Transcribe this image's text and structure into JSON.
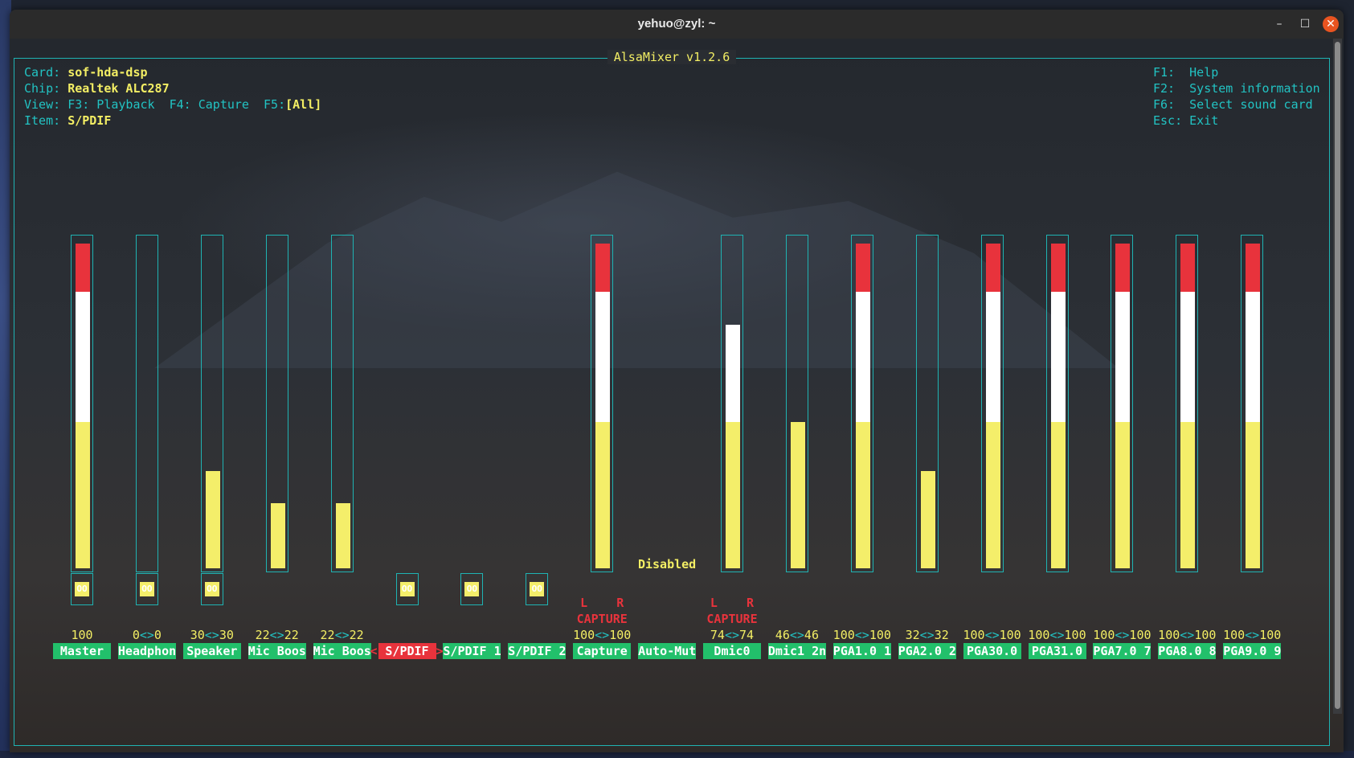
{
  "window": {
    "title": "yehuo@zyl: ~",
    "minimize_glyph": "–",
    "maximize_glyph": "☐",
    "close_glyph": "✕"
  },
  "app": {
    "title": "AlsaMixer v1.2.6",
    "card_label": "Card:",
    "card_value": "sof-hda-dsp",
    "chip_label": "Chip:",
    "chip_value": "Realtek ALC287",
    "view_label": "View:",
    "view_f3": "F3: Playback",
    "view_f4": "F4: Capture",
    "view_f5_key": "F5:",
    "view_f5_value": "[All]",
    "item_label": "Item:",
    "item_value": "S/PDIF"
  },
  "help": [
    {
      "key": "F1:",
      "text": "Help"
    },
    {
      "key": "F2:",
      "text": "System information"
    },
    {
      "key": "F6:",
      "text": "Select sound card"
    },
    {
      "key": "Esc:",
      "text": "Exit"
    }
  ],
  "colors": {
    "frame": "#1fb3b3",
    "accent_yellow": "#f3ee64",
    "name_bg": "#22c06b",
    "selected_bg": "#e8333c"
  },
  "switch_glyph": "OO",
  "disabled_text": "Disabled",
  "capture_left": "L",
  "capture_right": "R",
  "capture_word": "CAPTURE",
  "selected_marker_left": "<",
  "selected_marker_right": ">",
  "channels": [
    {
      "name": "Master",
      "left": "100",
      "right": "",
      "level": 1.0,
      "switch": true
    },
    {
      "name": "Headphon",
      "left": "0",
      "right": "0",
      "level": 0.0,
      "switch": true
    },
    {
      "name": "Speaker",
      "left": "30",
      "right": "30",
      "level": 0.3,
      "switch": true
    },
    {
      "name": "Mic Boos",
      "left": "22",
      "right": "22",
      "level": 0.2,
      "switch": false
    },
    {
      "name": "Mic Boos",
      "left": "22",
      "right": "22",
      "level": 0.2,
      "switch": false
    },
    {
      "name": "S/PDIF",
      "left": "",
      "right": "",
      "level": null,
      "switch": true,
      "selected": true
    },
    {
      "name": "S/PDIF 1",
      "left": "",
      "right": "",
      "level": null,
      "switch": true
    },
    {
      "name": "S/PDIF 2",
      "left": "",
      "right": "",
      "level": null,
      "switch": true
    },
    {
      "name": "Capture",
      "left": "100",
      "right": "100",
      "level": 1.0,
      "switch": false,
      "capture": true
    },
    {
      "name": "Auto-Mut",
      "left": "",
      "right": "",
      "level": null,
      "switch": false,
      "disabled": true
    },
    {
      "name": "Dmic0",
      "left": "74",
      "right": "74",
      "level": 0.75,
      "switch": false,
      "capture": true
    },
    {
      "name": "Dmic1 2n",
      "left": "46",
      "right": "46",
      "level": 0.45,
      "switch": false
    },
    {
      "name": "PGA1.0 1",
      "left": "100",
      "right": "100",
      "level": 1.0,
      "switch": false
    },
    {
      "name": "PGA2.0 2",
      "left": "32",
      "right": "32",
      "level": 0.3,
      "switch": false
    },
    {
      "name": "PGA30.0",
      "left": "100",
      "right": "100",
      "level": 1.0,
      "switch": false
    },
    {
      "name": "PGA31.0",
      "left": "100",
      "right": "100",
      "level": 1.0,
      "switch": false
    },
    {
      "name": "PGA7.0 7",
      "left": "100",
      "right": "100",
      "level": 1.0,
      "switch": false
    },
    {
      "name": "PGA8.0 8",
      "left": "100",
      "right": "100",
      "level": 1.0,
      "switch": false
    },
    {
      "name": "PGA9.0 9",
      "left": "100",
      "right": "100",
      "level": 1.0,
      "switch": false
    }
  ]
}
